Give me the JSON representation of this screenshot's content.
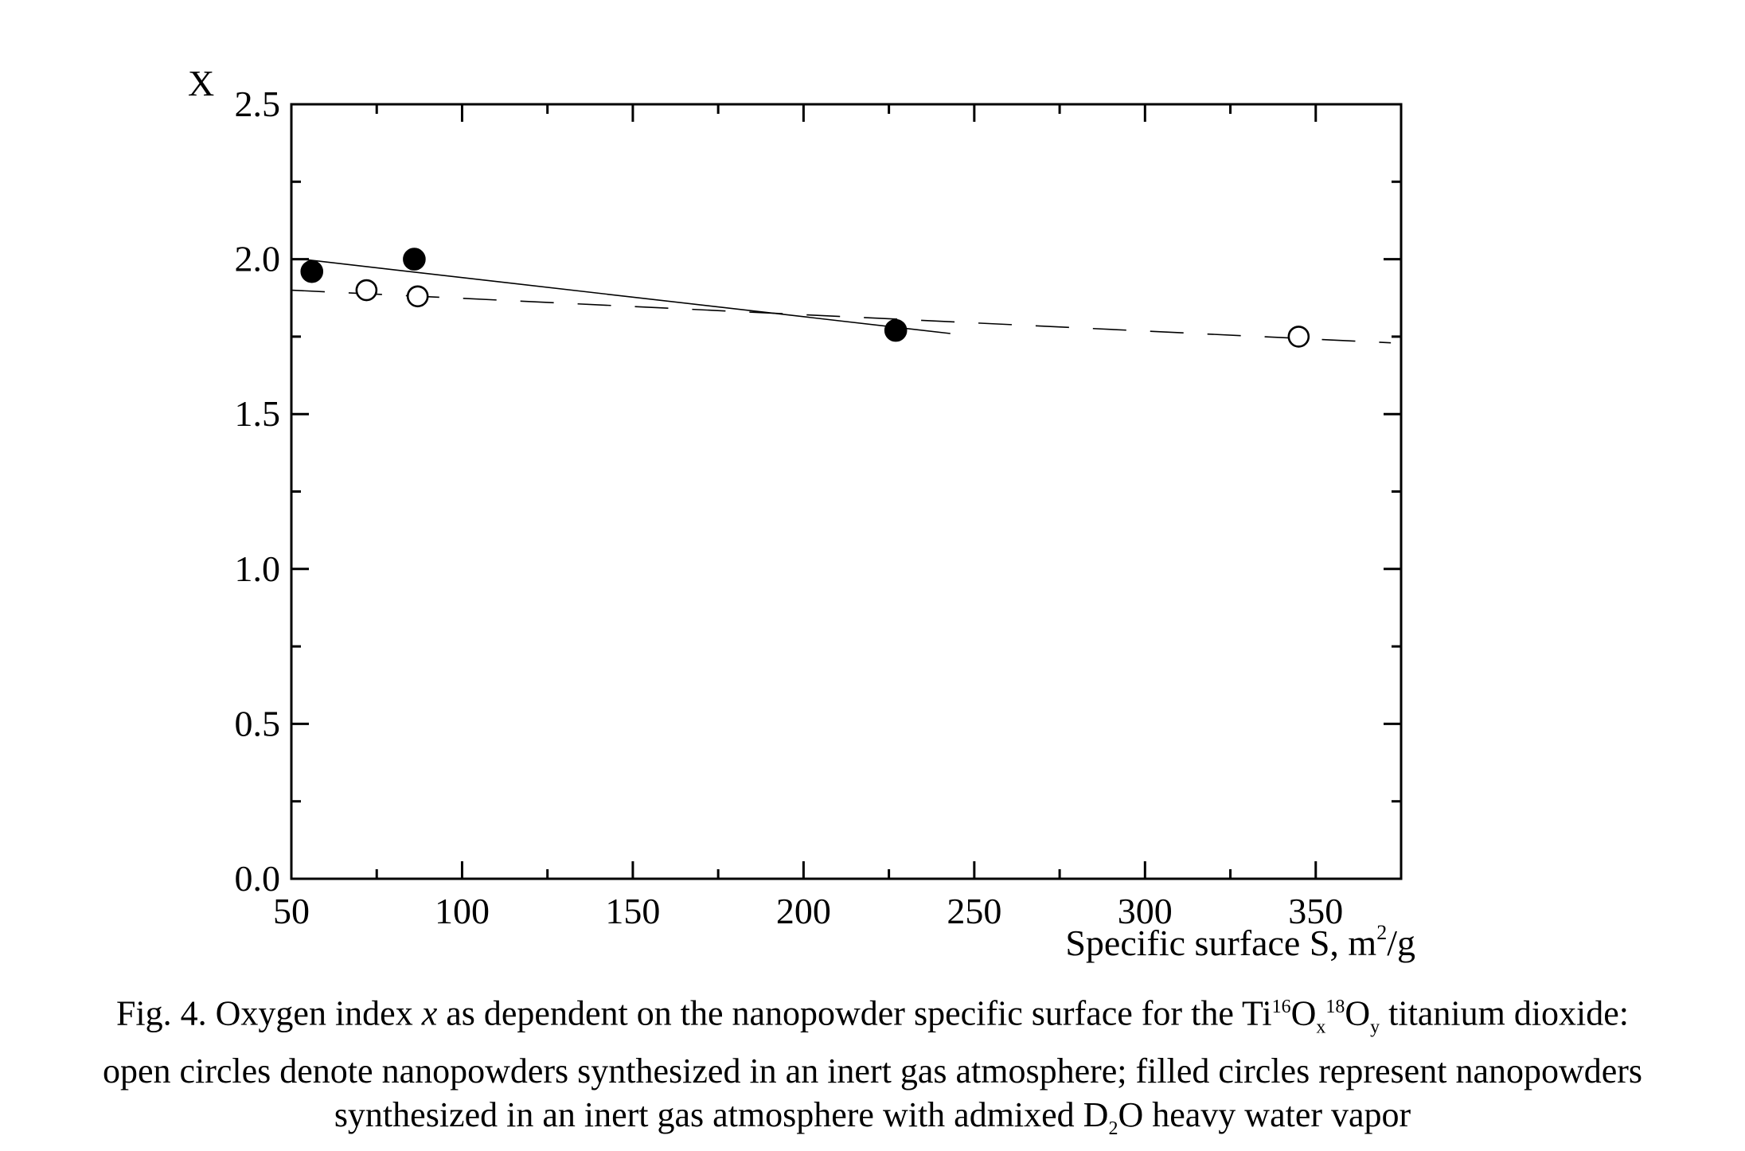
{
  "chart_data": {
    "type": "scatter",
    "ylabel": "X",
    "xlabel_main": "Specific surface S, m",
    "xlabel_sup": "2",
    "xlabel_tail": "/g",
    "xlim": [
      50,
      375
    ],
    "ylim": [
      0,
      2.5
    ],
    "x_ticks": [
      50,
      100,
      150,
      200,
      250,
      300,
      350
    ],
    "y_ticks": [
      0,
      0.5,
      1.0,
      1.5,
      2.0,
      2.5
    ],
    "x_tick_labels": [
      "50",
      "100",
      "150",
      "200",
      "250",
      "300",
      "350"
    ],
    "y_tick_labels": [
      "0.0",
      "0.5",
      "1.0",
      "1.5",
      "2.0",
      "2.5"
    ],
    "x_minor_step": 25,
    "y_minor_step": 0.25,
    "grid": false,
    "series": [
      {
        "marker": "filled-circle",
        "points": [
          {
            "x": 56,
            "y": 1.96
          },
          {
            "x": 86,
            "y": 2.0
          },
          {
            "x": 227,
            "y": 1.77
          }
        ],
        "fit": {
          "style": "solid",
          "x": [
            53,
            243
          ],
          "y": [
            2.0,
            1.76
          ]
        }
      },
      {
        "marker": "open-circle",
        "points": [
          {
            "x": 72,
            "y": 1.9
          },
          {
            "x": 87,
            "y": 1.88
          },
          {
            "x": 345,
            "y": 1.75
          }
        ],
        "fit": {
          "style": "dashed",
          "x": [
            50,
            372
          ],
          "y": [
            1.9,
            1.73
          ]
        }
      }
    ]
  },
  "caption": {
    "line1_a": "Fig. 4. Oxygen index ",
    "line1_var": "x",
    "line1_b": " as dependent on the nanopowder specific surface for the Ti",
    "sup16": "16",
    "o1": "O",
    "sub_x": "x",
    "sup18": "18",
    "o2": "O",
    "sub_y": "y",
    "line1_c": " titanium dioxide:",
    "line2": "open circles denote nanopowders synthesized in an inert gas atmosphere; filled circles represent nanopowders",
    "line3_a": "synthesized in an inert gas atmosphere with admixed D",
    "sub_2": "2",
    "line3_b": "O heavy water vapor"
  }
}
